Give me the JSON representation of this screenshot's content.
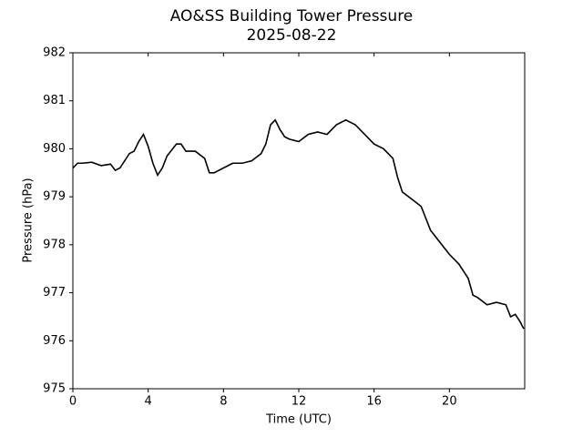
{
  "chart_data": {
    "type": "line",
    "title": "AO&SS Building Tower Pressure",
    "subtitle": "2025-08-22",
    "xlabel": "Time (UTC)",
    "ylabel": "Pressure (hPa)",
    "x": [
      0,
      0.25,
      0.5,
      1,
      1.5,
      2,
      2.25,
      2.5,
      3,
      3.25,
      3.5,
      3.75,
      4,
      4.25,
      4.5,
      4.75,
      5,
      5.5,
      5.75,
      6,
      6.5,
      7,
      7.25,
      7.5,
      8,
      8.5,
      9,
      9.5,
      10,
      10.25,
      10.5,
      10.75,
      11,
      11.25,
      11.5,
      12,
      12.5,
      13,
      13.5,
      14,
      14.5,
      15,
      15.5,
      16,
      16.5,
      17,
      17.25,
      17.5,
      18,
      18.5,
      19,
      19.5,
      20,
      20.5,
      21,
      21.25,
      21.5,
      22,
      22.5,
      23,
      23.25,
      23.5,
      23.75,
      23.95
    ],
    "series": [
      {
        "name": "Pressure",
        "color": "#000000",
        "values": [
          979.6,
          979.7,
          979.7,
          979.72,
          979.65,
          979.68,
          979.55,
          979.6,
          979.9,
          979.95,
          980.15,
          980.3,
          980.05,
          979.7,
          979.45,
          979.6,
          979.85,
          980.1,
          980.1,
          979.95,
          979.95,
          979.8,
          979.5,
          979.5,
          979.6,
          979.7,
          979.7,
          979.75,
          979.9,
          980.1,
          980.5,
          980.6,
          980.4,
          980.25,
          980.2,
          980.15,
          980.3,
          980.35,
          980.3,
          980.5,
          980.6,
          980.5,
          980.3,
          980.1,
          980.0,
          979.8,
          979.4,
          979.1,
          978.95,
          978.8,
          978.3,
          978.05,
          977.8,
          977.6,
          977.3,
          976.95,
          976.9,
          976.75,
          976.8,
          976.75,
          976.5,
          976.55,
          976.4,
          976.25
        ]
      }
    ],
    "xlim": [
      0,
      24
    ],
    "xticks": [
      0,
      4,
      8,
      12,
      16,
      20
    ],
    "ylim": [
      975,
      982
    ],
    "yticks": [
      975,
      976,
      977,
      978,
      979,
      980,
      981,
      982
    ],
    "grid": false
  }
}
